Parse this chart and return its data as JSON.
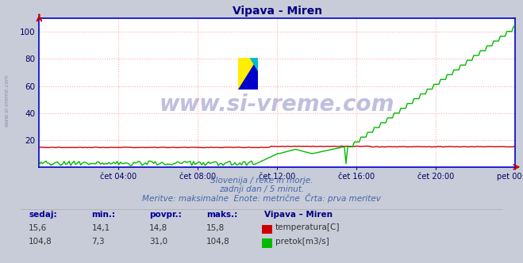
{
  "title": "Vipava - Miren",
  "title_color": "#000080",
  "bg_color": "#c8ccd8",
  "plot_bg_color": "#ffffff",
  "grid_color": "#ffaaaa",
  "grid_style": ":",
  "xlabel_ticks": [
    "čet 04:00",
    "čet 08:00",
    "čet 12:00",
    "čet 16:00",
    "čet 20:00",
    "pet 00:00"
  ],
  "x_tick_positions": [
    0.1667,
    0.3333,
    0.5,
    0.6667,
    0.8333,
    1.0
  ],
  "ylim": [
    0,
    110
  ],
  "yticks": [
    20,
    40,
    60,
    80,
    100
  ],
  "watermark_text": "www.si-vreme.com",
  "watermark_color": "#000080",
  "watermark_alpha": 0.25,
  "sub_text1": "Slovenija / reke in morje.",
  "sub_text2": "zadnji dan / 5 minut.",
  "sub_text3": "Meritve: maksimalne  Enote: metrične  Črta: prva meritev",
  "sub_text_color": "#4466aa",
  "legend_title": "Vipava – Miren",
  "legend_title_color": "#000080",
  "temp_color": "#cc0000",
  "flow_color": "#00bb00",
  "temp_label": "temperatura[C]",
  "flow_label": "pretok[m3/s]",
  "table_headers": [
    "sedaj:",
    "min.:",
    "povpr.:",
    "maks.:"
  ],
  "table_color": "#000099",
  "temp_row": [
    "15,6",
    "14,1",
    "14,8",
    "15,8"
  ],
  "flow_row": [
    "104,8",
    "7,3",
    "31,0",
    "104,8"
  ],
  "tick_color": "#000066",
  "spine_color": "#0000cc",
  "arrow_color": "#cc0000",
  "side_watermark": "www.si-vreme.com",
  "side_watermark_color": "#8888aa"
}
